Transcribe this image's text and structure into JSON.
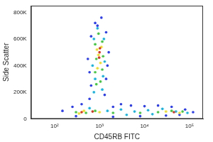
{
  "chart_data": {
    "type": "scatter",
    "x_label": "CD45RB FITC",
    "y_label": "Side Scatter",
    "log": "x",
    "grid": false,
    "xlim": [
      30,
      200000
    ],
    "xticks": [
      {
        "value": 100,
        "label": "10²"
      },
      {
        "value": 1000,
        "label": "10³"
      },
      {
        "value": 10000,
        "label": "10⁴"
      },
      {
        "value": 100000,
        "label": "10⁵"
      }
    ],
    "ylim": [
      0,
      850000
    ],
    "yticks": [
      0,
      {
        "value": 200000,
        "label": "200K"
      },
      {
        "value": 400000,
        "label": "400K"
      },
      {
        "value": 600000,
        "label": "600K"
      },
      {
        "value": 800000,
        "label": "800K"
      }
    ],
    "x": [
      600,
      1300,
      650,
      1400,
      600,
      1500,
      650,
      1400,
      800,
      1100,
      900,
      550,
      1600,
      750,
      1150,
      800,
      1200,
      700,
      1300,
      750,
      1250,
      900,
      850,
      1050,
      800,
      1150,
      850,
      1200,
      800,
      1150,
      950,
      900,
      1050,
      950,
      1100,
      880,
      980,
      1000,
      1020,
      250,
      400,
      2000,
      3000,
      5000,
      10000,
      20000,
      40000,
      80000,
      120000,
      300,
      2000,
      8000,
      30000,
      60000,
      150,
      600,
      1500,
      3000,
      6000,
      12000,
      25000,
      50000,
      90000,
      4000,
      15000,
      300,
      500,
      800,
      2000,
      8000,
      20000,
      40000,
      70000,
      350,
      450,
      1000,
      30000,
      60000,
      400,
      700,
      45000
    ],
    "values": [
      150000,
      180000,
      250000,
      300000,
      350000,
      400000,
      620000,
      650000,
      720000,
      760000,
      700000,
      450000,
      500000,
      200000,
      220000,
      300000,
      320000,
      400000,
      430000,
      600000,
      600000,
      680000,
      260000,
      280000,
      350000,
      370000,
      450000,
      470000,
      560000,
      580000,
      640000,
      380000,
      420000,
      480000,
      540000,
      520000,
      460000,
      500000,
      530000,
      90000,
      110000,
      90000,
      110000,
      100000,
      95000,
      100000,
      90000,
      70000,
      50000,
      20000,
      15000,
      20000,
      25000,
      30000,
      60000,
      80000,
      60000,
      70000,
      55000,
      65000,
      75000,
      55000,
      45000,
      30000,
      35000,
      50000,
      45000,
      60000,
      45000,
      45000,
      50000,
      60000,
      55000,
      40000,
      60000,
      50000,
      55000,
      45000,
      50000,
      55000,
      50000
    ],
    "colors": [
      "#2a3cff",
      "#2a3cff",
      "#2a3cff",
      "#2a3cff",
      "#2a3cff",
      "#2a3cff",
      "#2a3cff",
      "#2a3cff",
      "#2a3cff",
      "#2a3cff",
      "#2a3cff",
      "#2a3cff",
      "#2a3cff",
      "#10b8e8",
      "#10b8e8",
      "#10b8e8",
      "#10b8e8",
      "#10b8e8",
      "#10b8e8",
      "#10b8e8",
      "#10b8e8",
      "#10b8e8",
      "#3ccc3c",
      "#3ccc3c",
      "#3ccc3c",
      "#3ccc3c",
      "#3ccc3c",
      "#3ccc3c",
      "#3ccc3c",
      "#3ccc3c",
      "#3ccc3c",
      "#f0e020",
      "#f0e020",
      "#f0e020",
      "#f0e020",
      "#f0e020",
      "#e03020",
      "#e03020",
      "#e03020",
      "#2a3cff",
      "#2a3cff",
      "#2a3cff",
      "#2a3cff",
      "#2a3cff",
      "#2a3cff",
      "#2a3cff",
      "#2a3cff",
      "#2a3cff",
      "#2a3cff",
      "#2a3cff",
      "#2a3cff",
      "#2a3cff",
      "#2a3cff",
      "#2a3cff",
      "#2a3cff",
      "#10b8e8",
      "#10b8e8",
      "#10b8e8",
      "#10b8e8",
      "#10b8e8",
      "#10b8e8",
      "#10b8e8",
      "#10b8e8",
      "#10b8e8",
      "#10b8e8",
      "#3ccc3c",
      "#3ccc3c",
      "#3ccc3c",
      "#3ccc3c",
      "#3ccc3c",
      "#3ccc3c",
      "#3ccc3c",
      "#3ccc3c",
      "#f0e020",
      "#f0e020",
      "#f0e020",
      "#f0e020",
      "#f0e020",
      "#e03020",
      "#e03020",
      "#e03020"
    ]
  }
}
